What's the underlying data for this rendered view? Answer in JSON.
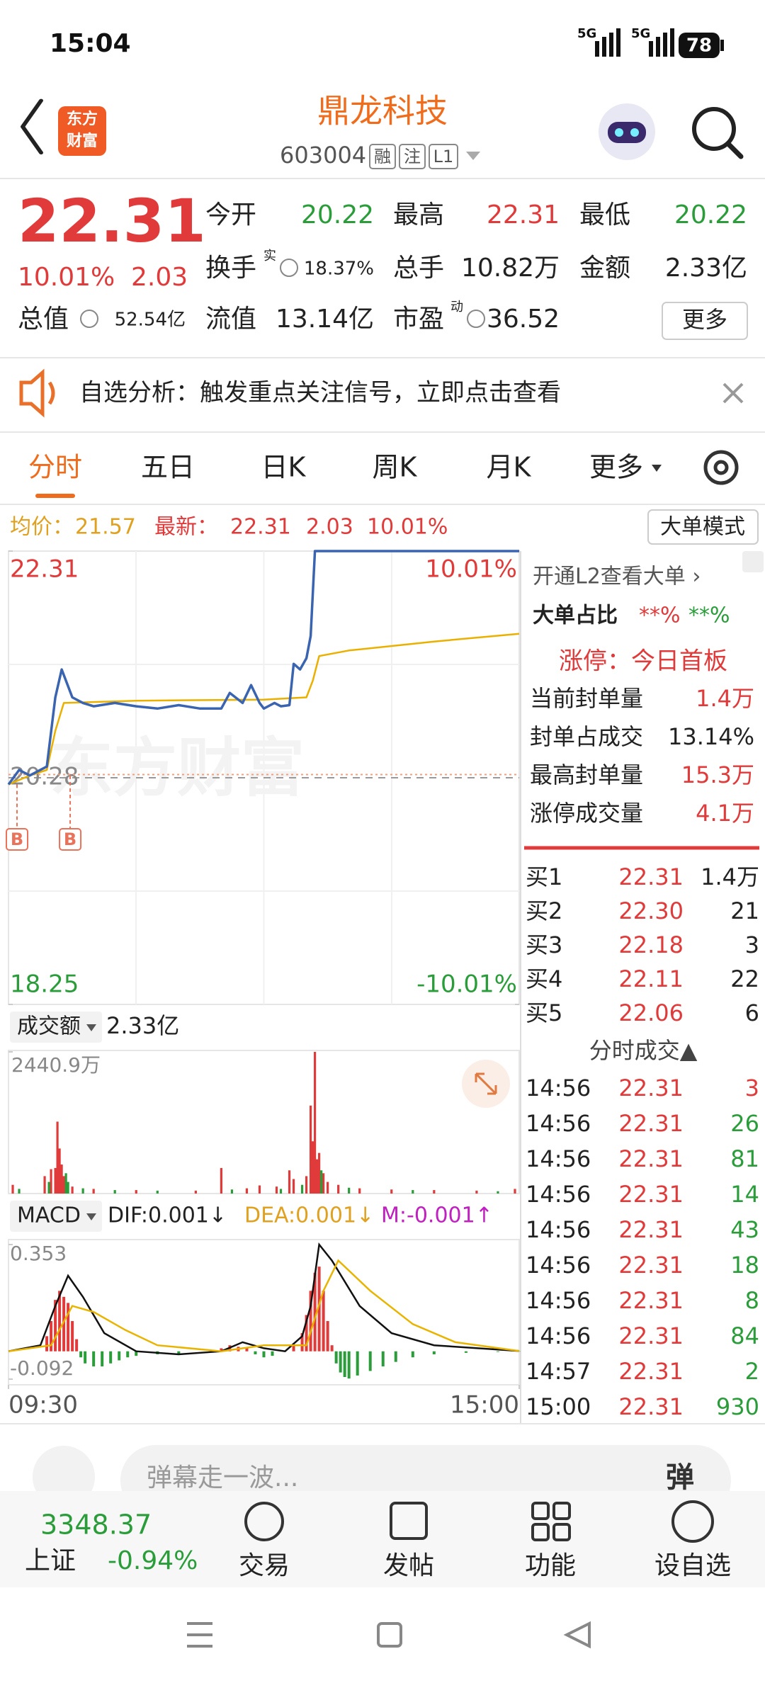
{
  "status_bar": {
    "time": "15:04",
    "network": [
      "5G",
      "5G"
    ],
    "battery": "78"
  },
  "header": {
    "logo": [
      "东方",
      "财富"
    ],
    "title": "鼎龙科技",
    "code": "603004",
    "tags": [
      "融",
      "注",
      "L1"
    ]
  },
  "quote": {
    "price": "22.31",
    "change_pct": "10.01%",
    "change": "2.03",
    "open_label": "今开",
    "open": "20.22",
    "high_label": "最高",
    "high": "22.31",
    "low_label": "最低",
    "low": "20.22",
    "turnover_label": "换手",
    "turnover_sup": "实",
    "turnover": "18.37%",
    "volume_label": "总手",
    "volume": "10.82万",
    "amount_label": "金额",
    "amount": "2.33亿",
    "mktcap_label": "总值",
    "mktcap": "52.54亿",
    "float_label": "流值",
    "float": "13.14亿",
    "pe_label": "市盈",
    "pe_sup": "动",
    "pe": "36.52",
    "more": "更多"
  },
  "banner": {
    "text": "自选分析：触发重点关注信号，立即点击查看"
  },
  "tabs": [
    "分时",
    "五日",
    "日K",
    "周K",
    "月K",
    "更多"
  ],
  "info_line": {
    "avg_label": "均价：",
    "avg": "21.57",
    "latest_label": "最新：",
    "latest": "22.31",
    "change": "2.03",
    "pct": "10.01%",
    "mode_button": "大单模式"
  },
  "chart_data": [
    {
      "type": "line",
      "watermark": "东方财富",
      "xlim": [
        0,
        240
      ],
      "ylim": [
        18.25,
        22.31
      ],
      "yticks": [
        18.25,
        20.28,
        22.31
      ],
      "y2lim": [
        -10.01,
        10.01
      ],
      "y2ticks": [
        {
          "value": -10.01,
          "label": "-10.01%"
        },
        {
          "value": 10.01,
          "label": "10.01%"
        }
      ],
      "series": [
        {
          "color": "#3a64b0",
          "x": [
            0,
            5,
            10,
            18,
            22,
            25,
            30,
            35,
            40,
            50,
            60,
            70,
            80,
            90,
            100,
            104,
            110,
            114,
            118,
            120,
            125,
            128,
            132,
            134,
            137,
            140,
            142,
            144,
            240
          ],
          "values": [
            20.22,
            20.35,
            20.3,
            20.38,
            21.0,
            21.25,
            21.0,
            20.95,
            20.92,
            20.95,
            20.92,
            20.9,
            20.93,
            20.9,
            20.9,
            21.04,
            20.95,
            21.11,
            20.95,
            20.9,
            20.95,
            20.92,
            20.93,
            21.3,
            21.25,
            21.35,
            21.55,
            22.31,
            22.31
          ]
        },
        {
          "color": "#eab000",
          "x": [
            0,
            10,
            18,
            22,
            26,
            60,
            120,
            140,
            143,
            146,
            160,
            200,
            240
          ],
          "values": [
            20.22,
            20.3,
            20.35,
            20.7,
            20.95,
            20.97,
            20.98,
            21.0,
            21.15,
            21.37,
            21.42,
            21.5,
            21.57
          ]
        }
      ],
      "markers": [
        {
          "label": "B",
          "x": 2,
          "value": 20.22
        },
        {
          "label": "B",
          "x": 17,
          "value": 20.3
        }
      ]
    },
    {
      "type": "bar",
      "label": "成交额",
      "total": "2.33亿",
      "xlim": [
        0,
        240
      ],
      "ylim": [
        0,
        2440.9
      ],
      "yticks": [
        {
          "value": 2440.9,
          "label": "2440.9万"
        }
      ],
      "series": [
        {
          "color": "#e03a3a",
          "x": [
            2,
            17,
            20,
            22,
            23,
            24,
            25,
            26,
            30,
            40,
            60,
            88,
            100,
            112,
            118,
            126,
            132,
            134,
            140,
            142,
            143,
            144,
            145,
            146,
            148,
            150,
            155,
            165,
            180,
            200,
            220,
            238
          ],
          "values": [
            150,
            300,
            420,
            440,
            1239,
            776,
            500,
            300,
            120,
            80,
            60,
            50,
            440,
            90,
            140,
            120,
            400,
            250,
            300,
            1516,
            900,
            2440.9,
            590,
            700,
            350,
            200,
            150,
            90,
            70,
            60,
            50,
            80
          ]
        },
        {
          "color": "#2a9d3a",
          "x": [
            5,
            19,
            27,
            28,
            35,
            50,
            70,
            105,
            128,
            138,
            147,
            160,
            190,
            230
          ],
          "values": [
            80,
            200,
            350,
            200,
            90,
            60,
            50,
            70,
            80,
            150,
            400,
            100,
            60,
            40
          ]
        }
      ]
    },
    {
      "type": "line",
      "label": "MACD",
      "dif": "DIF:0.001↓",
      "dea": "DEA:0.001↓",
      "m": "M:-0.001↑",
      "xlim": [
        0,
        240
      ],
      "xticks": [
        {
          "value": 0,
          "label": "09:30"
        },
        {
          "value": 240,
          "label": "15:00"
        }
      ],
      "ylim": [
        -0.092,
        0.353
      ],
      "yticks": [
        -0.092,
        0.353
      ],
      "series": [
        {
          "color": "#111111",
          "x": [
            0,
            15,
            22,
            28,
            35,
            45,
            60,
            80,
            100,
            110,
            120,
            130,
            138,
            142,
            146,
            152,
            165,
            180,
            200,
            240
          ],
          "values": [
            0,
            0.02,
            0.15,
            0.25,
            0.18,
            0.06,
            0.0,
            -0.01,
            0.0,
            0.03,
            0.01,
            0.0,
            0.05,
            0.15,
            0.353,
            0.3,
            0.15,
            0.06,
            0.02,
            0.001
          ]
        },
        {
          "color": "#e8b400",
          "x": [
            0,
            20,
            30,
            40,
            55,
            70,
            100,
            120,
            140,
            148,
            155,
            170,
            190,
            210,
            240
          ],
          "values": [
            0,
            0.02,
            0.15,
            0.13,
            0.07,
            0.02,
            0.0,
            0.02,
            0.02,
            0.2,
            0.3,
            0.2,
            0.09,
            0.03,
            0.001
          ]
        }
      ],
      "histogram": {
        "up_color": "#e03a3a",
        "down_color": "#2a9d3a",
        "x": [
          18,
          20,
          22,
          24,
          26,
          28,
          30,
          32,
          34,
          36,
          40,
          44,
          48,
          52,
          56,
          60,
          70,
          80,
          100,
          104,
          108,
          112,
          116,
          120,
          124,
          134,
          138,
          140,
          142,
          144,
          146,
          148,
          150,
          152,
          154,
          156,
          158,
          160,
          164,
          170,
          176,
          182,
          190,
          200,
          215,
          230,
          240
        ],
        "values": [
          0.05,
          0.1,
          0.17,
          0.2,
          0.18,
          0.16,
          0.1,
          0.04,
          -0.02,
          -0.04,
          -0.05,
          -0.05,
          -0.04,
          -0.03,
          -0.02,
          -0.015,
          -0.01,
          -0.008,
          0.01,
          0.02,
          0.015,
          0.01,
          -0.01,
          -0.02,
          -0.015,
          0.02,
          0.06,
          0.12,
          0.2,
          0.26,
          0.28,
          0.2,
          0.1,
          0.02,
          -0.04,
          -0.07,
          -0.085,
          -0.09,
          -0.08,
          -0.065,
          -0.05,
          -0.035,
          -0.02,
          -0.01,
          -0.005,
          -0.002,
          -0.001
        ]
      }
    }
  ],
  "side_panel": {
    "l2_link": "开通L2查看大单 ›",
    "big_order_label": "大单占比",
    "big_buy": "**%",
    "big_sell": "**%",
    "limit_title": "涨停：今日首板",
    "limit_rows": [
      {
        "label": "当前封单量",
        "value": "1.4万",
        "color": "#e03a3a"
      },
      {
        "label": "封单占成交",
        "value": "13.14%",
        "color": "#222222"
      },
      {
        "label": "最高封单量",
        "value": "15.3万",
        "color": "#e03a3a"
      },
      {
        "label": "涨停成交量",
        "value": "4.1万",
        "color": "#e03a3a"
      }
    ],
    "order_book": [
      [
        "买1",
        "22.31",
        "1.4万"
      ],
      [
        "买2",
        "22.30",
        "21"
      ],
      [
        "买3",
        "22.18",
        "3"
      ],
      [
        "买4",
        "22.11",
        "22"
      ],
      [
        "买5",
        "22.06",
        "6"
      ]
    ],
    "trades_title": "分时成交▲",
    "trades": [
      {
        "time": "14:56",
        "price": "22.31",
        "qty": "3",
        "color": "#e03a3a"
      },
      {
        "time": "14:56",
        "price": "22.31",
        "qty": "26",
        "color": "#2a9d3a"
      },
      {
        "time": "14:56",
        "price": "22.31",
        "qty": "81",
        "color": "#2a9d3a"
      },
      {
        "time": "14:56",
        "price": "22.31",
        "qty": "14",
        "color": "#2a9d3a"
      },
      {
        "time": "14:56",
        "price": "22.31",
        "qty": "43",
        "color": "#2a9d3a"
      },
      {
        "time": "14:56",
        "price": "22.31",
        "qty": "18",
        "color": "#2a9d3a"
      },
      {
        "time": "14:56",
        "price": "22.31",
        "qty": "8",
        "color": "#2a9d3a"
      },
      {
        "time": "14:56",
        "price": "22.31",
        "qty": "84",
        "color": "#2a9d3a"
      },
      {
        "time": "14:57",
        "price": "22.31",
        "qty": "2",
        "color": "#2a9d3a"
      },
      {
        "time": "15:00",
        "price": "22.31",
        "qty": "930",
        "color": "#2a9d3a"
      }
    ]
  },
  "comment_bar": {
    "placeholder": "弹幕走一波...",
    "button": "弹"
  },
  "bottom_nav": {
    "index_value": "3348.37",
    "index_name": "上证",
    "index_change": "-0.94%",
    "items": [
      "交易",
      "发帖",
      "功能",
      "设自选"
    ]
  }
}
